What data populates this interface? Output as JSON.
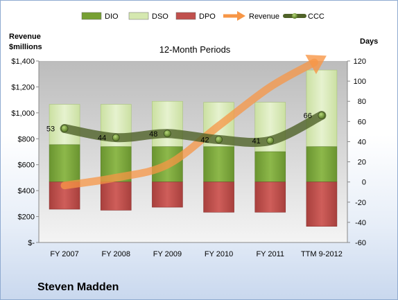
{
  "chart_data": {
    "type": "bar",
    "subtitle": "12-Month Periods",
    "company": "Steven Madden",
    "left_axis_title": [
      "Revenue",
      "$millions"
    ],
    "right_axis_title": "Days",
    "categories": [
      "FY 2007",
      "FY 2008",
      "FY 2009",
      "FY 2010",
      "FY 2011",
      "TTM 9-2012"
    ],
    "left_ylim": [
      0,
      1400
    ],
    "left_ticks": [
      0,
      200,
      400,
      600,
      800,
      1000,
      1200,
      1400
    ],
    "left_tick_labels": [
      "$-",
      "$200",
      "$400",
      "$600",
      "$800",
      "$1,000",
      "$1,200",
      "$1,400"
    ],
    "right_ylim": [
      -60,
      120
    ],
    "right_ticks": [
      -60,
      -40,
      -20,
      0,
      20,
      40,
      60,
      80,
      100,
      120
    ],
    "grid": false,
    "legend_position": "top",
    "series": [
      {
        "name": "DIO",
        "kind": "stacked_bar_days",
        "color": "#77a033",
        "values": [
          37,
          35,
          35,
          35,
          30,
          35
        ]
      },
      {
        "name": "DSO",
        "kind": "stacked_bar_days",
        "color": "#d5e8b0",
        "values": [
          40,
          42,
          45,
          44,
          49,
          76
        ]
      },
      {
        "name": "DPO",
        "kind": "negative_bar_days",
        "color": "#c0504d",
        "values": [
          -27,
          -28,
          -25,
          -30,
          -30,
          -44
        ]
      },
      {
        "name": "Revenue",
        "kind": "arrow_line_millions",
        "color": "#f79646",
        "values": [
          440,
          500,
          600,
          900,
          1200,
          1420
        ]
      },
      {
        "name": "CCC",
        "kind": "line_days",
        "color": "#4f6228",
        "values": [
          53,
          44,
          48,
          42,
          41,
          66
        ],
        "labels": [
          "53",
          "44",
          "48",
          "42",
          "41",
          "66"
        ]
      }
    ]
  }
}
